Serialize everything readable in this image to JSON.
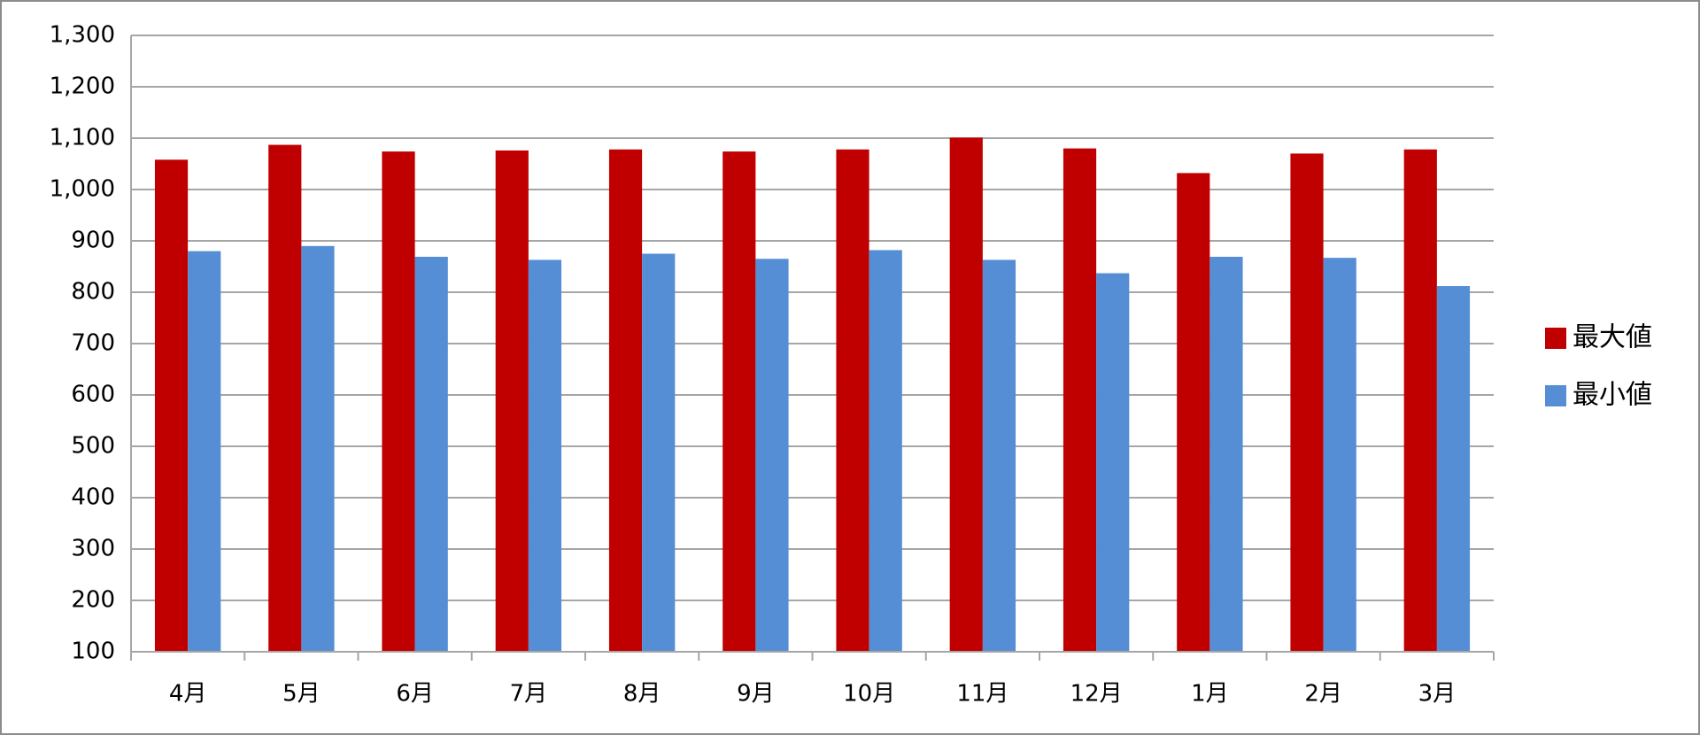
{
  "chart_data": {
    "type": "bar",
    "categories": [
      "4月",
      "5月",
      "6月",
      "7月",
      "8月",
      "9月",
      "10月",
      "11月",
      "12月",
      "1月",
      "2月",
      "3月"
    ],
    "series": [
      {
        "name": "最大値",
        "color": "#c00000",
        "values": [
          1058,
          1087,
          1074,
          1076,
          1078,
          1074,
          1078,
          1101,
          1080,
          1032,
          1070,
          1078
        ]
      },
      {
        "name": "最小値",
        "color": "#558ed5",
        "values": [
          880,
          890,
          869,
          863,
          875,
          865,
          882,
          863,
          837,
          869,
          867,
          812
        ]
      }
    ],
    "ylim": [
      100,
      1300
    ],
    "yticks": [
      100,
      200,
      300,
      400,
      500,
      600,
      700,
      800,
      900,
      {
        "value": 1000,
        "label": "1,000"
      },
      {
        "value": 1100,
        "label": "1,100"
      },
      {
        "value": 1200,
        "label": "1,200"
      },
      {
        "value": 1300,
        "label": "1,300"
      }
    ],
    "grid": true,
    "legend": "right"
  }
}
